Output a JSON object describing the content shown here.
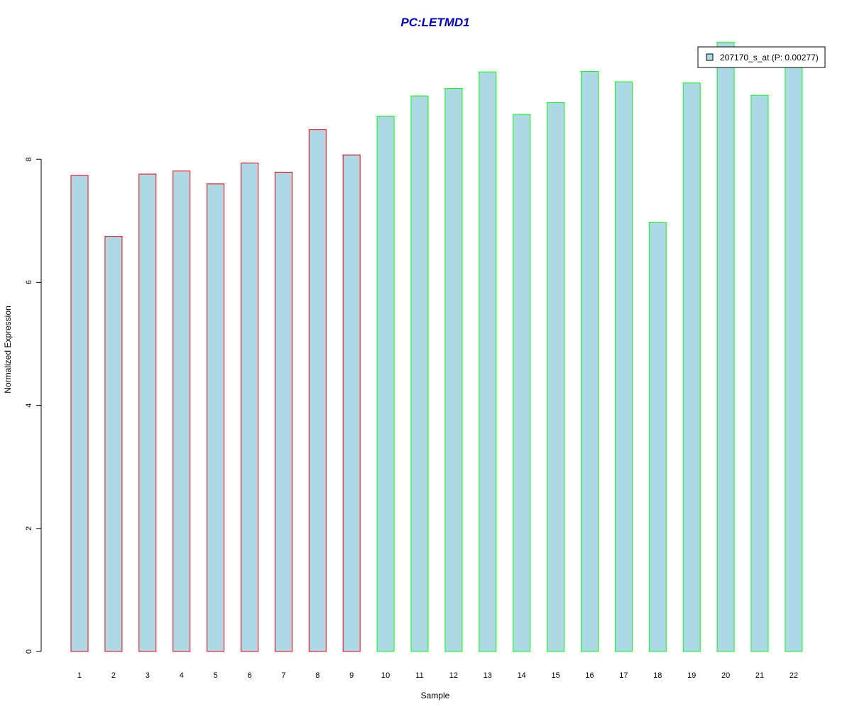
{
  "chart_data": {
    "type": "bar",
    "title": "PC:LETMD1",
    "xlabel": "Sample",
    "ylabel": "Normalized Expression",
    "categories": [
      "1",
      "2",
      "3",
      "4",
      "5",
      "6",
      "7",
      "8",
      "9",
      "10",
      "11",
      "12",
      "13",
      "14",
      "15",
      "16",
      "17",
      "18",
      "19",
      "20",
      "21",
      "22"
    ],
    "series": [
      {
        "name": "207170_s_at (P: 0.00277)",
        "values": [
          7.74,
          6.75,
          7.76,
          7.81,
          7.6,
          7.94,
          7.79,
          8.48,
          8.07,
          8.7,
          9.03,
          9.15,
          9.42,
          8.73,
          8.92,
          9.43,
          9.26,
          6.97,
          9.24,
          9.9,
          9.04,
          9.6
        ]
      }
    ],
    "yticks": [
      0,
      2,
      4,
      6,
      8
    ],
    "ylim": [
      0,
      9.9
    ],
    "bar_fill": "#add8e6",
    "group_border_colors": [
      "#ff0000",
      "#ff0000",
      "#ff0000",
      "#ff0000",
      "#ff0000",
      "#ff0000",
      "#ff0000",
      "#ff0000",
      "#ff0000",
      "#00ff00",
      "#00ff00",
      "#00ff00",
      "#00ff00",
      "#00ff00",
      "#00ff00",
      "#00ff00",
      "#00ff00",
      "#00ff00",
      "#00ff00",
      "#00ff00",
      "#00ff00",
      "#00ff00"
    ],
    "title_color": "#0000cd",
    "legend_position": "top-right",
    "grid": false
  }
}
